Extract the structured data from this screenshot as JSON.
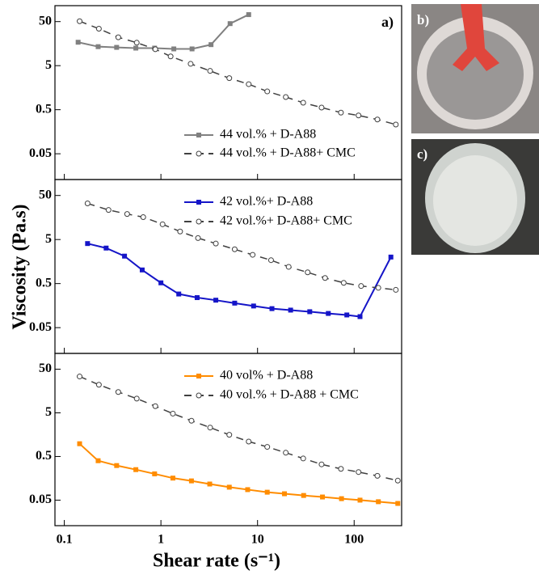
{
  "figure": {
    "y_label": "Viscosity (Pa.s)",
    "x_label": "Shear rate (s⁻¹)",
    "images": [
      {
        "label": "b)"
      },
      {
        "label": "c)"
      }
    ]
  },
  "chart_data": [
    {
      "type": "line",
      "annotation": "a)",
      "xscale": "log",
      "yscale": "log",
      "legend": "lower right",
      "xlim": [
        0.08,
        310
      ],
      "xticks": [
        0.1,
        1,
        10,
        100
      ],
      "ylim": [
        0.013,
        115
      ],
      "yticks": [
        0.05,
        0.5,
        5,
        50
      ],
      "series": [
        {
          "name": "44 vol.% + D-A88",
          "color": "#808080",
          "line_style": "solid",
          "marker": "square",
          "x": [
            0.139,
            0.224,
            0.348,
            0.55,
            0.86,
            1.36,
            2.1,
            3.3,
            5.2,
            8.1
          ],
          "values": [
            17,
            13.5,
            13,
            12.5,
            12.5,
            12,
            12,
            15,
            45,
            72
          ]
        },
        {
          "name": "44 vol.% + D-A88+ CMC",
          "color": "#404040",
          "line_style": "dashed",
          "marker": "circle-open",
          "x": [
            0.144,
            0.228,
            0.362,
            0.562,
            0.875,
            1.26,
            2.03,
            3.23,
            5.1,
            8.1,
            12.6,
            19.6,
            29.7,
            46,
            73,
            111,
            174,
            270
          ],
          "values": [
            51,
            34.5,
            22,
            16.6,
            11.8,
            8.1,
            5.5,
            3.8,
            2.6,
            1.9,
            1.3,
            0.97,
            0.72,
            0.56,
            0.43,
            0.37,
            0.3,
            0.23
          ]
        }
      ]
    },
    {
      "type": "line",
      "xscale": "log",
      "yscale": "log",
      "legend": "upper right",
      "xlim": [
        0.08,
        310
      ],
      "xticks": [
        0.1,
        1,
        10,
        100
      ],
      "ylim": [
        0.013,
        115
      ],
      "yticks": [
        0.05,
        0.5,
        5,
        50
      ],
      "series": [
        {
          "name": "42 vol.%+ D-A88",
          "color": "#1515c8",
          "line_style": "solid",
          "marker": "square",
          "x": [
            0.174,
            0.271,
            0.42,
            0.64,
            1.0,
            1.53,
            2.37,
            3.7,
            5.8,
            9.1,
            14.1,
            22,
            34.7,
            54,
            84,
            115,
            240
          ],
          "values": [
            4.05,
            3.2,
            2.1,
            1.02,
            0.52,
            0.29,
            0.24,
            0.21,
            0.18,
            0.155,
            0.135,
            0.125,
            0.115,
            0.105,
            0.097,
            0.089,
            2.0
          ]
        },
        {
          "name": "42 vol.%+ D-A88+ CMC",
          "color": "#404040",
          "line_style": "dashed",
          "marker": "circle-open",
          "x": [
            0.174,
            0.287,
            0.447,
            0.656,
            1.04,
            1.58,
            2.42,
            3.7,
            5.8,
            8.9,
            13.8,
            21,
            33,
            50,
            78,
            118,
            178,
            270
          ],
          "values": [
            33,
            23.4,
            19,
            16.1,
            11.1,
            7.6,
            5.4,
            4.05,
            3.0,
            2.25,
            1.7,
            1.2,
            0.9,
            0.67,
            0.52,
            0.44,
            0.4,
            0.36
          ]
        }
      ]
    },
    {
      "type": "line",
      "xscale": "log",
      "yscale": "log",
      "legend": "upper right",
      "xlim": [
        0.08,
        310
      ],
      "xticks": [
        0.1,
        1,
        10,
        100
      ],
      "ylim": [
        0.013,
        115
      ],
      "yticks": [
        0.05,
        0.5,
        5,
        50
      ],
      "series": [
        {
          "name": "40 vol% + D-A88",
          "color": "#ff8c00",
          "line_style": "solid",
          "marker": "square",
          "x": [
            0.144,
            0.224,
            0.348,
            0.55,
            0.86,
            1.33,
            2.07,
            3.2,
            5.1,
            7.9,
            12.6,
            19,
            30,
            47,
            74,
            115,
            178,
            283
          ],
          "values": [
            0.98,
            0.4,
            0.31,
            0.25,
            0.2,
            0.16,
            0.138,
            0.117,
            0.099,
            0.087,
            0.076,
            0.07,
            0.064,
            0.059,
            0.054,
            0.05,
            0.046,
            0.042
          ]
        },
        {
          "name": "40 vol.% + D-A88 + CMC",
          "color": "#404040",
          "line_style": "dashed",
          "marker": "circle-open",
          "x": [
            0.144,
            0.228,
            0.362,
            0.562,
            0.875,
            1.33,
            2.07,
            3.23,
            5.1,
            8.1,
            12.6,
            19.6,
            29.7,
            46,
            73,
            111,
            174,
            283
          ],
          "values": [
            34,
            22,
            15,
            10.6,
            7.1,
            4.8,
            3.3,
            2.3,
            1.57,
            1.1,
            0.83,
            0.61,
            0.45,
            0.33,
            0.26,
            0.22,
            0.18,
            0.14
          ]
        }
      ]
    }
  ]
}
